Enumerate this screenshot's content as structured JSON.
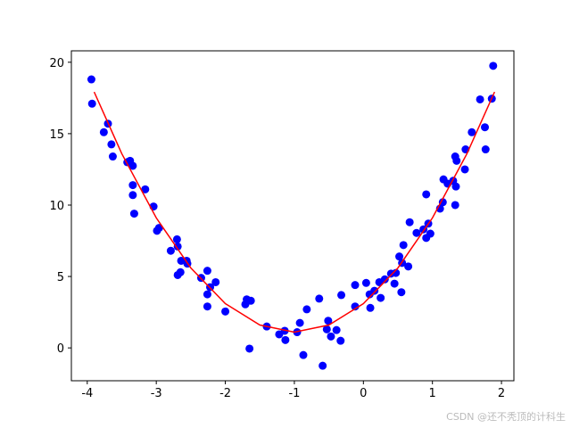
{
  "chart_data": {
    "type": "scatter",
    "xlim": [
      -4.23,
      2.18
    ],
    "ylim": [
      -2.3,
      20.8
    ],
    "xticks": [
      -4,
      -3,
      -2,
      -1,
      0,
      1,
      2
    ],
    "yticks": [
      0,
      5,
      10,
      15,
      20
    ],
    "grid": false,
    "series": [
      {
        "type": "scatter",
        "color": "#0000ff",
        "x": [
          -3.94,
          -3.93,
          -3.76,
          -3.7,
          -3.65,
          -3.63,
          -3.42,
          -3.38,
          -3.34,
          -3.34,
          -3.34,
          -3.32,
          -3.16,
          -3.04,
          -2.99,
          -2.96,
          -2.79,
          -2.7,
          -2.69,
          -2.69,
          -2.65,
          -2.64,
          -2.56,
          -2.55,
          -2.35,
          -2.26,
          -2.26,
          -2.26,
          -2.22,
          -2.14,
          -2.0,
          -1.71,
          -1.69,
          -1.63,
          -1.65,
          -1.4,
          -1.22,
          -1.14,
          -1.13,
          -0.96,
          -0.92,
          -0.87,
          -0.82,
          -0.64,
          -0.59,
          -0.53,
          -0.51,
          -0.47,
          -0.39,
          -0.33,
          -0.32,
          -0.12,
          -0.12,
          0.04,
          0.1,
          0.09,
          0.16,
          0.23,
          0.25,
          0.31,
          0.4,
          0.45,
          0.47,
          0.52,
          0.55,
          0.58,
          0.56,
          0.65,
          0.67,
          0.77,
          0.87,
          0.91,
          0.91,
          0.94,
          0.97,
          1.11,
          1.15,
          1.16,
          1.22,
          1.3,
          1.33,
          1.35,
          1.34,
          1.33,
          1.47,
          1.48,
          1.57,
          1.69,
          1.76,
          1.77,
          1.86,
          1.88
        ],
        "values": [
          18.8,
          17.1,
          15.1,
          15.7,
          14.25,
          13.4,
          13.0,
          13.1,
          12.75,
          11.4,
          10.7,
          9.4,
          11.1,
          9.9,
          8.2,
          8.4,
          6.8,
          7.6,
          7.1,
          5.1,
          5.3,
          6.1,
          6.1,
          5.9,
          4.9,
          5.4,
          3.75,
          2.9,
          4.25,
          4.6,
          2.55,
          3.05,
          3.4,
          3.3,
          -0.05,
          1.5,
          0.95,
          1.2,
          0.55,
          1.1,
          1.75,
          -0.5,
          2.7,
          3.45,
          -1.25,
          1.3,
          1.9,
          0.8,
          1.25,
          0.5,
          3.7,
          4.4,
          2.9,
          4.55,
          2.8,
          3.75,
          4.0,
          4.6,
          3.5,
          4.8,
          5.2,
          4.5,
          5.25,
          6.4,
          3.9,
          7.2,
          5.95,
          5.7,
          8.8,
          8.05,
          8.3,
          7.7,
          10.75,
          8.7,
          8.0,
          9.75,
          10.2,
          11.8,
          11.5,
          11.7,
          13.4,
          13.1,
          11.3,
          10.0,
          12.5,
          13.9,
          15.1,
          17.4,
          15.45,
          13.9,
          17.45,
          19.75
        ]
      },
      {
        "type": "line",
        "color": "#ff0000",
        "x": [
          -3.9,
          -3.5,
          -3.0,
          -2.5,
          -2.0,
          -1.5,
          -1.0,
          -0.5,
          0.0,
          0.5,
          1.0,
          1.5,
          1.9
        ],
        "values": [
          17.92,
          13.6,
          9.1,
          5.6,
          3.1,
          1.6,
          1.1,
          1.6,
          3.1,
          5.6,
          9.1,
          13.6,
          17.92
        ]
      }
    ]
  },
  "watermark": "CSDN @还不秃顶的计科生"
}
